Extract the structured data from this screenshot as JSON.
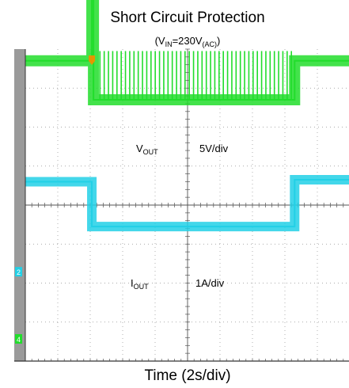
{
  "title": "Short Circuit Protection",
  "subtitle": {
    "open": "(V",
    "sub1": "IN",
    "mid": "=230V",
    "sub2": "(AC)",
    "close": ")"
  },
  "xlabel": "Time (2s/div)",
  "colors": {
    "vout": "#22d0e6",
    "iout": "#22dd2c",
    "trigger_marker": "#e69500",
    "grid": "#909090",
    "frame": "#333333",
    "left_bar": "#9a9a9a"
  },
  "chart_data": {
    "type": "line",
    "title": "Short Circuit Protection",
    "subtitle": "(VIN=230V(AC))",
    "xlabel": "Time (2s/div)",
    "x_unit": "s",
    "x_per_div": 2,
    "xlim": [
      0,
      20
    ],
    "x_divisions": 10,
    "y_divisions": 8,
    "grid": true,
    "channel_markers": [
      "2",
      "4"
    ],
    "series": [
      {
        "name": "VOUT",
        "label_main": "V",
        "label_sub": "OUT",
        "scale_label": "5V/div",
        "ground_div": 5.75,
        "points": [
          [
            0,
            2.35
          ],
          [
            4.1,
            2.35
          ],
          [
            4.1,
            1.2
          ],
          [
            16.6,
            1.2
          ],
          [
            16.6,
            2.4
          ],
          [
            20,
            2.4
          ]
        ]
      },
      {
        "name": "IOUT",
        "label_main": "I",
        "label_sub": "OUT",
        "scale_label": "1A/div",
        "ground_div": 1.3,
        "points": [
          [
            0,
            1.0
          ],
          [
            4.1,
            1.0
          ],
          [
            4.1,
            8.1
          ],
          [
            4.2,
            8.1
          ],
          [
            4.2,
            0
          ],
          [
            16.6,
            0
          ],
          [
            16.6,
            1.0
          ],
          [
            20,
            1.0
          ]
        ],
        "pulses": {
          "start": 4.6,
          "end": 16.4,
          "count": 46,
          "peak_div": 1.25
        }
      }
    ]
  }
}
